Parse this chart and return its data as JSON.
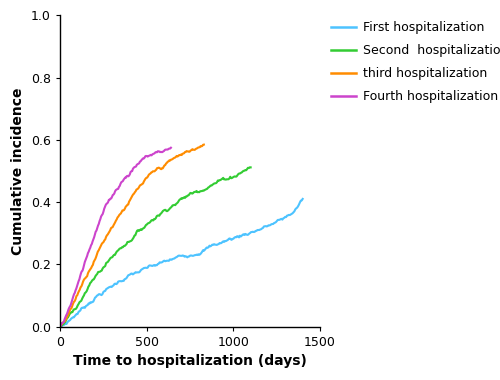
{
  "title": "",
  "xlabel": "Time to hospitalization (days)",
  "ylabel": "Cumulative incidence",
  "xlim": [
    0,
    1500
  ],
  "ylim": [
    0,
    1.0
  ],
  "xticks": [
    0,
    500,
    1000,
    1500
  ],
  "yticks": [
    0.0,
    0.2,
    0.4,
    0.6,
    0.8,
    1.0
  ],
  "legend_labels": [
    "First hospitalization",
    "Second  hospitalization",
    "third hospitalization",
    "Fourth hospitalization"
  ],
  "colors": [
    "#4DC3FF",
    "#33CC33",
    "#FF8C00",
    "#CC44CC"
  ],
  "curves": {
    "first": {
      "x": [
        0,
        30,
        60,
        90,
        120,
        150,
        180,
        210,
        240,
        270,
        300,
        350,
        400,
        450,
        500,
        550,
        600,
        650,
        700,
        750,
        800,
        850,
        900,
        950,
        1000,
        1050,
        1100,
        1150,
        1200,
        1250,
        1300,
        1350,
        1400
      ],
      "y": [
        0.0,
        0.01,
        0.025,
        0.04,
        0.055,
        0.07,
        0.085,
        0.1,
        0.11,
        0.12,
        0.13,
        0.15,
        0.165,
        0.175,
        0.185,
        0.195,
        0.205,
        0.215,
        0.225,
        0.235,
        0.245,
        0.255,
        0.265,
        0.275,
        0.285,
        0.295,
        0.305,
        0.315,
        0.325,
        0.335,
        0.35,
        0.37,
        0.41
      ]
    },
    "second": {
      "x": [
        0,
        30,
        60,
        90,
        120,
        150,
        180,
        210,
        240,
        270,
        300,
        350,
        400,
        450,
        500,
        550,
        600,
        650,
        700,
        750,
        800,
        850,
        900,
        950,
        1000,
        1050,
        1100
      ],
      "y": [
        0.0,
        0.015,
        0.04,
        0.065,
        0.09,
        0.115,
        0.14,
        0.165,
        0.185,
        0.205,
        0.225,
        0.255,
        0.28,
        0.305,
        0.33,
        0.355,
        0.375,
        0.395,
        0.41,
        0.425,
        0.44,
        0.455,
        0.465,
        0.475,
        0.485,
        0.5,
        0.515
      ]
    },
    "third": {
      "x": [
        0,
        30,
        60,
        90,
        120,
        150,
        180,
        210,
        240,
        270,
        300,
        350,
        400,
        450,
        500,
        550,
        600,
        650,
        700,
        750,
        800,
        830
      ],
      "y": [
        0.0,
        0.02,
        0.055,
        0.09,
        0.13,
        0.165,
        0.2,
        0.235,
        0.265,
        0.295,
        0.325,
        0.37,
        0.405,
        0.44,
        0.47,
        0.495,
        0.515,
        0.535,
        0.55,
        0.565,
        0.575,
        0.58
      ]
    },
    "fourth": {
      "x": [
        0,
        30,
        60,
        90,
        120,
        150,
        180,
        210,
        240,
        270,
        300,
        350,
        400,
        440,
        480,
        530,
        580,
        640
      ],
      "y": [
        0.0,
        0.03,
        0.075,
        0.125,
        0.175,
        0.225,
        0.27,
        0.315,
        0.355,
        0.39,
        0.42,
        0.465,
        0.495,
        0.52,
        0.54,
        0.555,
        0.565,
        0.575
      ]
    }
  },
  "linewidth": 1.5,
  "xlabel_fontsize": 10,
  "ylabel_fontsize": 10,
  "tick_fontsize": 9,
  "legend_fontsize": 9,
  "background_color": "#ffffff"
}
